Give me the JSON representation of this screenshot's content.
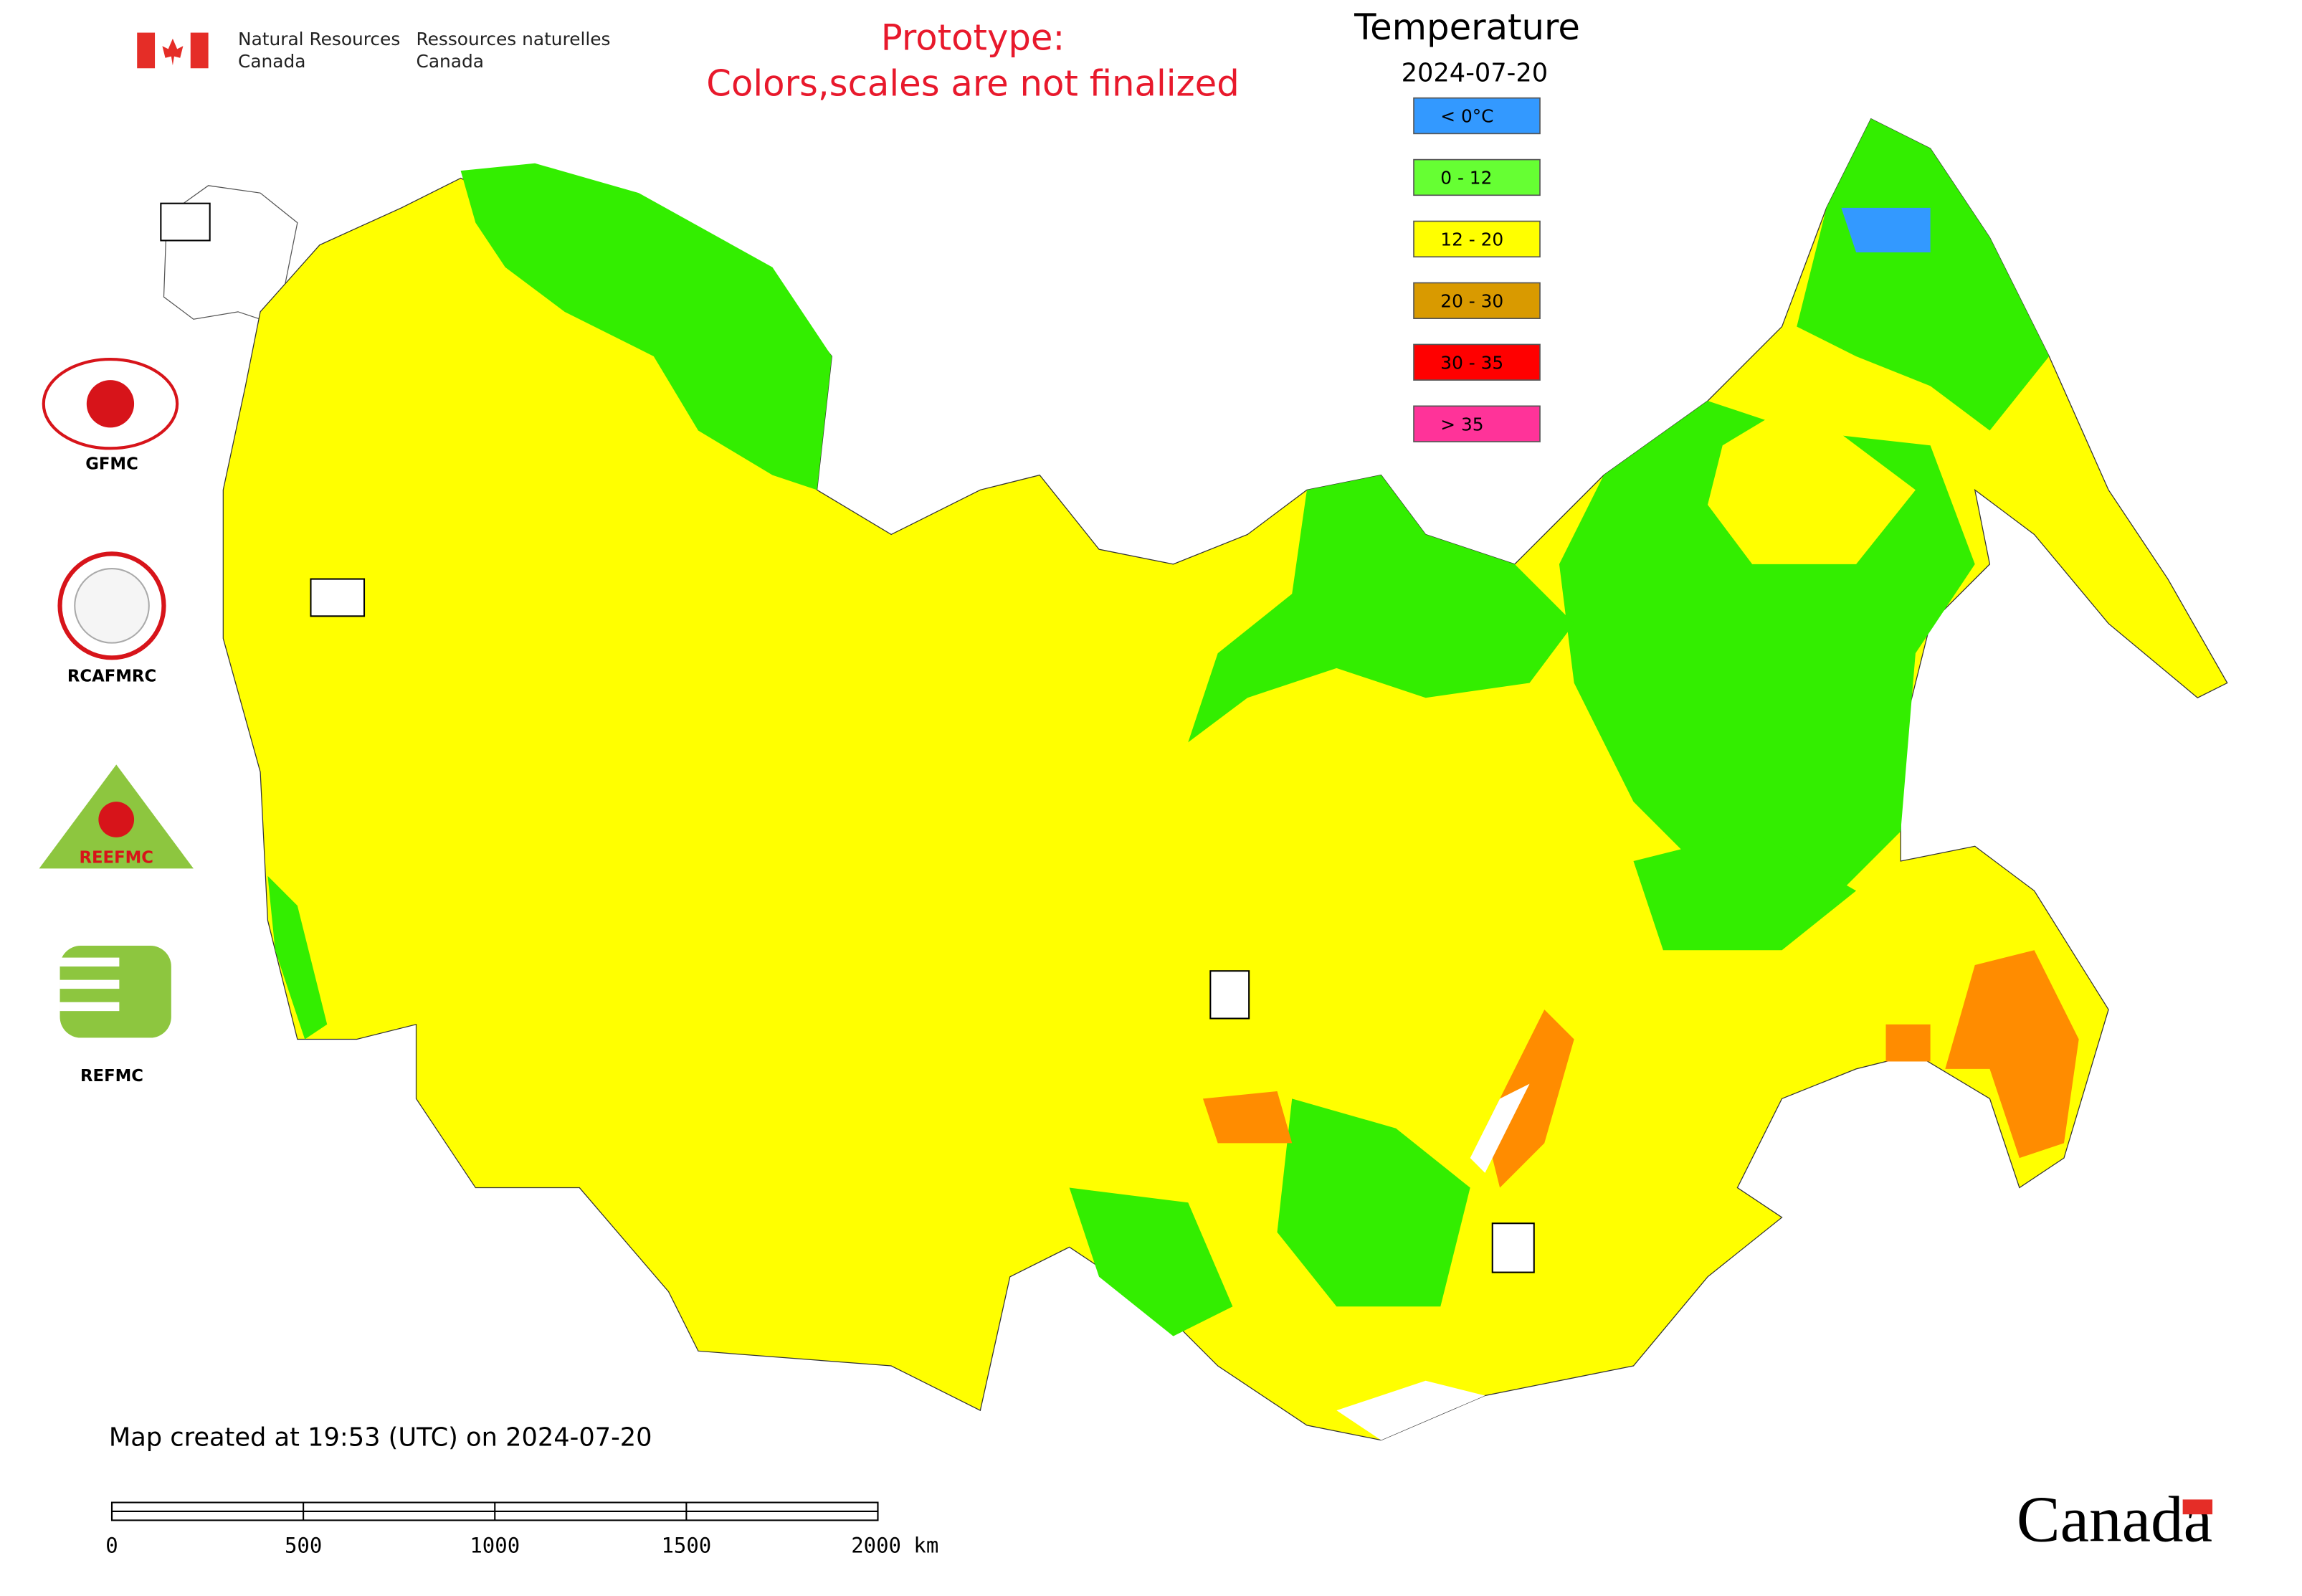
{
  "header": {
    "agency_en": [
      "Natural Resources",
      "Canada"
    ],
    "agency_fr": [
      "Ressources naturelles",
      "Canada"
    ],
    "notice": [
      "Prototype:",
      "Colors,scales are not finalized"
    ]
  },
  "legend": {
    "title": "Temperature",
    "date": "2024-07-20",
    "items": [
      {
        "label": "< 0°C",
        "color": "#3399ff"
      },
      {
        "label": "0 - 12",
        "color": "#66ff33"
      },
      {
        "label": "12 - 20",
        "color": "#ffff00"
      },
      {
        "label": "20 - 30",
        "color": "#d99a00"
      },
      {
        "label": "30 - 35",
        "color": "#ff0000"
      },
      {
        "label": "> 35",
        "color": "#ff3399"
      }
    ]
  },
  "logos": [
    "GFMC",
    "RCAFMRC",
    "REEFMC",
    "REFMC"
  ],
  "footer": {
    "created": "Map created at 19:53 (UTC) on 2024-07-20",
    "scale_labels": [
      "0",
      "500",
      "1000",
      "1500",
      "2000 km"
    ],
    "wordmark": "Canada"
  }
}
